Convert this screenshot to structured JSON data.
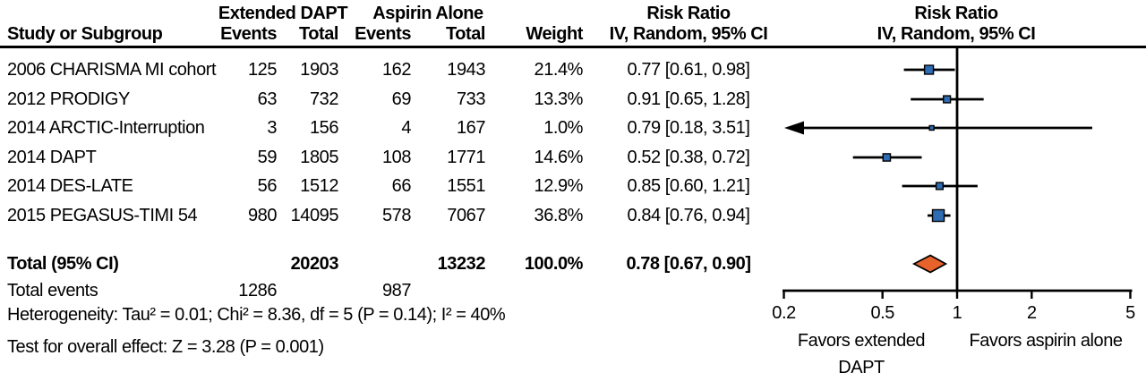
{
  "header": {
    "group1": "Extended DAPT",
    "group2": "Aspirin Alone",
    "study_col": "Study or Subgroup",
    "events": "Events",
    "total": "Total",
    "weight": "Weight",
    "risk_ratio": "Risk Ratio",
    "method": "IV, Random, 95% CI"
  },
  "colors": {
    "marker_blue": "#2D6BB2",
    "diamond_orange": "#E8622C",
    "line_black": "#000000"
  },
  "chart_data": {
    "type": "forest",
    "x_scale": "log",
    "xlim": [
      0.2,
      5
    ],
    "null_line": 1,
    "axis_ticks": [
      "0.2",
      "0.5",
      "1",
      "2",
      "5"
    ],
    "studies": [
      {
        "name": "2006 CHARISMA MI cohort",
        "events_dapt": "125",
        "total_dapt": "1903",
        "events_aspirin": "162",
        "total_aspirin": "1943",
        "weight": "21.4%",
        "weight_value": 21.4,
        "rr_text": "0.77 [0.61, 0.98]",
        "rr": 0.77,
        "ci_low": 0.61,
        "ci_high": 0.98
      },
      {
        "name": "2012 PRODIGY",
        "events_dapt": "63",
        "total_dapt": "732",
        "events_aspirin": "69",
        "total_aspirin": "733",
        "weight": "13.3%",
        "weight_value": 13.3,
        "rr_text": "0.91 [0.65, 1.28]",
        "rr": 0.91,
        "ci_low": 0.65,
        "ci_high": 1.28
      },
      {
        "name": "2014 ARCTIC-Interruption",
        "events_dapt": "3",
        "total_dapt": "156",
        "events_aspirin": "4",
        "total_aspirin": "167",
        "weight": "1.0%",
        "weight_value": 1.0,
        "rr_text": "0.79 [0.18, 3.51]",
        "rr": 0.79,
        "ci_low": 0.18,
        "ci_high": 3.51
      },
      {
        "name": "2014 DAPT",
        "events_dapt": "59",
        "total_dapt": "1805",
        "events_aspirin": "108",
        "total_aspirin": "1771",
        "weight": "14.6%",
        "weight_value": 14.6,
        "rr_text": "0.52 [0.38, 0.72]",
        "rr": 0.52,
        "ci_low": 0.38,
        "ci_high": 0.72
      },
      {
        "name": "2014 DES-LATE",
        "events_dapt": "56",
        "total_dapt": "1512",
        "events_aspirin": "66",
        "total_aspirin": "1551",
        "weight": "12.9%",
        "weight_value": 12.9,
        "rr_text": "0.85 [0.60, 1.21]",
        "rr": 0.85,
        "ci_low": 0.6,
        "ci_high": 1.21
      },
      {
        "name": "2015 PEGASUS-TIMI 54",
        "events_dapt": "980",
        "total_dapt": "14095",
        "events_aspirin": "578",
        "total_aspirin": "7067",
        "weight": "36.8%",
        "weight_value": 36.8,
        "rr_text": "0.84 [0.76, 0.94]",
        "rr": 0.84,
        "ci_low": 0.76,
        "ci_high": 0.94
      }
    ],
    "total": {
      "label": "Total (95% CI)",
      "total_dapt": "20203",
      "total_aspirin": "13232",
      "weight": "100.0%",
      "rr_text": "0.78 [0.67, 0.90]",
      "rr": 0.78,
      "ci_low": 0.67,
      "ci_high": 0.9
    },
    "total_events": {
      "label": "Total events",
      "dapt": "1286",
      "aspirin": "987"
    },
    "heterogeneity": "Heterogeneity: Tau² = 0.01; Chi² = 8.36, df = 5 (P = 0.14); I² = 40%",
    "overall_effect": "Test for overall effect:  Z = 3.28 (P = 0.001)",
    "favors_left_line1": "Favors extended",
    "favors_left_line2": "DAPT",
    "favors_right": "Favors aspirin alone"
  }
}
